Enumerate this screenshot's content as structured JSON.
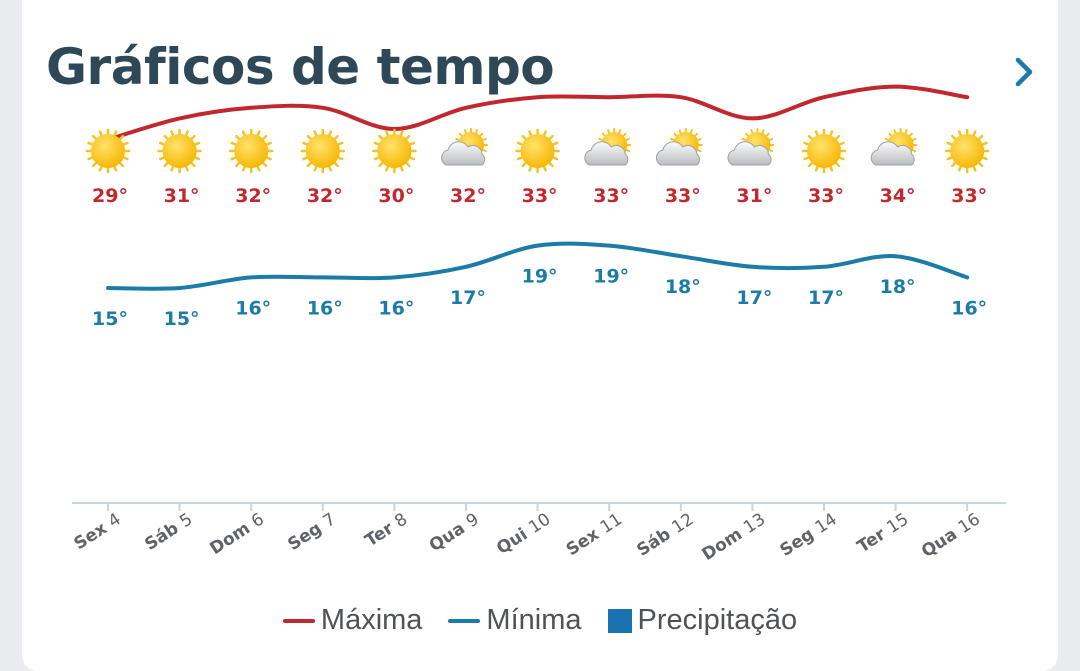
{
  "card": {
    "title": "Gráficos de tempo"
  },
  "colors": {
    "max": "#c1282d",
    "min": "#1c7ca8",
    "precip": "#1a73b0",
    "title": "#2f4858"
  },
  "chart_data": {
    "type": "line",
    "title": "",
    "categories": [
      {
        "dow": "Sex",
        "day": "4"
      },
      {
        "dow": "Sáb",
        "day": "5"
      },
      {
        "dow": "Dom",
        "day": "6"
      },
      {
        "dow": "Seg",
        "day": "7"
      },
      {
        "dow": "Ter",
        "day": "8"
      },
      {
        "dow": "Qua",
        "day": "9"
      },
      {
        "dow": "Qui",
        "day": "10"
      },
      {
        "dow": "Sex",
        "day": "11"
      },
      {
        "dow": "Sáb",
        "day": "12"
      },
      {
        "dow": "Dom",
        "day": "13"
      },
      {
        "dow": "Seg",
        "day": "14"
      },
      {
        "dow": "Ter",
        "day": "15"
      },
      {
        "dow": "Qua",
        "day": "16"
      }
    ],
    "icons": [
      "sun-icon",
      "sun-icon",
      "sun-icon",
      "sun-icon",
      "sun-icon",
      "partly-cloudy-icon",
      "sun-icon",
      "partly-cloudy-icon",
      "partly-cloudy-icon",
      "partly-cloudy-icon",
      "sun-icon",
      "partly-cloudy-icon",
      "sun-icon"
    ],
    "series": [
      {
        "name": "Máxima",
        "values": [
          29,
          31,
          32,
          32,
          30,
          32,
          33,
          33,
          33,
          31,
          33,
          34,
          33
        ]
      },
      {
        "name": "Mínima",
        "values": [
          15,
          15,
          16,
          16,
          16,
          17,
          19,
          19,
          18,
          17,
          17,
          18,
          16
        ]
      }
    ],
    "unit": "°",
    "legend": {
      "placement": "bottom",
      "entries": [
        "Máxima",
        "Mínima",
        "Precipitação"
      ]
    },
    "grid": false
  }
}
